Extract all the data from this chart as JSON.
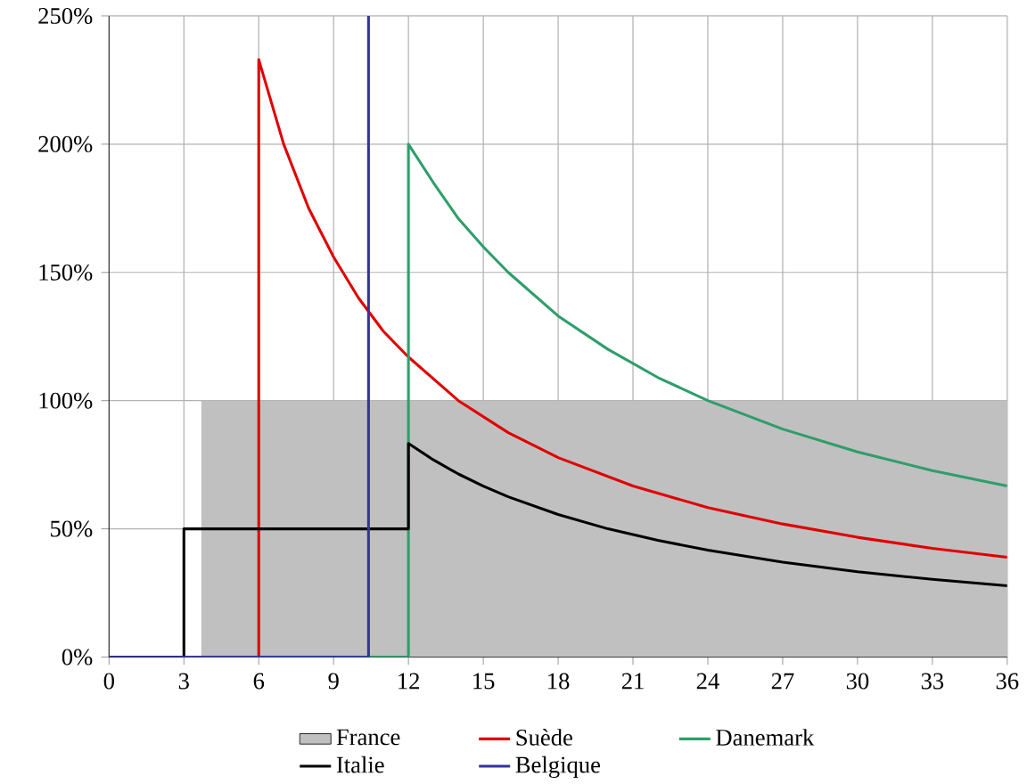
{
  "chart_data": {
    "type": "line",
    "xlim": [
      0,
      36
    ],
    "ylim": [
      0,
      250
    ],
    "xticks": [
      0,
      3,
      6,
      9,
      12,
      15,
      18,
      21,
      24,
      27,
      30,
      33,
      36
    ],
    "yticks": [
      {
        "value": 0,
        "label": "0%"
      },
      {
        "value": 50,
        "label": "50%"
      },
      {
        "value": 100,
        "label": "100%"
      },
      {
        "value": 150,
        "label": "150%"
      },
      {
        "value": 200,
        "label": "200%"
      },
      {
        "value": 250,
        "label": "250%"
      }
    ],
    "grid": true,
    "legend": "bottom",
    "marker": "none",
    "line_style": "solid",
    "series": [
      {
        "name": "France",
        "type": "area",
        "color": "#c0c0c0",
        "x": [
          0,
          3.7,
          3.7,
          36
        ],
        "values": [
          0,
          0,
          100,
          100
        ]
      },
      {
        "name": "Suède",
        "color": "#e00000",
        "x": [
          0,
          6,
          6,
          7,
          8,
          9,
          10,
          11,
          12,
          14,
          16,
          18,
          21,
          24,
          27,
          30,
          33,
          36
        ],
        "values": [
          0,
          0,
          233,
          200,
          175,
          156,
          140,
          127,
          117,
          100,
          87.5,
          77.8,
          66.7,
          58.3,
          51.9,
          46.7,
          42.4,
          38.9
        ]
      },
      {
        "name": "Danemark",
        "color": "#2e9e6a",
        "x": [
          0,
          12,
          12,
          13,
          14,
          15,
          16,
          18,
          20,
          22,
          24,
          27,
          30,
          33,
          36
        ],
        "values": [
          0,
          0,
          200,
          185,
          171,
          160,
          150,
          133,
          120,
          109,
          100,
          88.9,
          80,
          72.7,
          66.7
        ]
      },
      {
        "name": "Italie",
        "color": "#000000",
        "x": [
          0,
          3,
          3,
          12,
          12,
          13,
          14,
          15,
          16,
          18,
          20,
          22,
          24,
          27,
          30,
          33,
          36
        ],
        "values": [
          0,
          0,
          50,
          50,
          83.3,
          76.9,
          71.4,
          66.7,
          62.5,
          55.6,
          50,
          45.5,
          41.7,
          37,
          33.3,
          30.3,
          27.8
        ]
      },
      {
        "name": "Belgique",
        "color": "#3333a0",
        "x": [
          0,
          10.4,
          10.4
        ],
        "values": [
          0,
          0,
          250
        ]
      }
    ]
  }
}
